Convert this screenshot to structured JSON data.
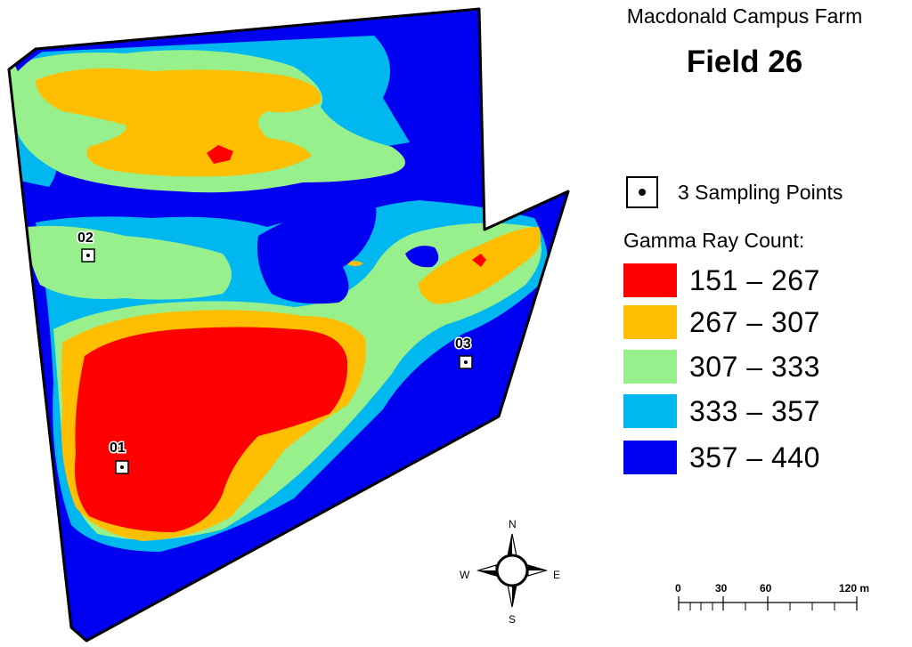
{
  "title": {
    "farm": "Macdonald Campus Farm",
    "field": "Field 26"
  },
  "legend": {
    "sampling_label": "3 Sampling Points",
    "heading": "Gamma Ray Count:",
    "classes": [
      {
        "label": "151 – 267",
        "color": "#ff0000"
      },
      {
        "label": "267 – 307",
        "color": "#ffbe00"
      },
      {
        "label": "307 – 333",
        "color": "#98f08c"
      },
      {
        "label": "333 – 357",
        "color": "#00b7f0"
      },
      {
        "label": "357 – 440",
        "color": "#0000f0"
      }
    ]
  },
  "sampling_points": [
    "01",
    "02",
    "03"
  ],
  "compass": {
    "n": "N",
    "s": "S",
    "e": "E",
    "w": "W"
  },
  "scale_bar": {
    "ticks": [
      "0",
      "30",
      "60",
      "120 m"
    ]
  }
}
